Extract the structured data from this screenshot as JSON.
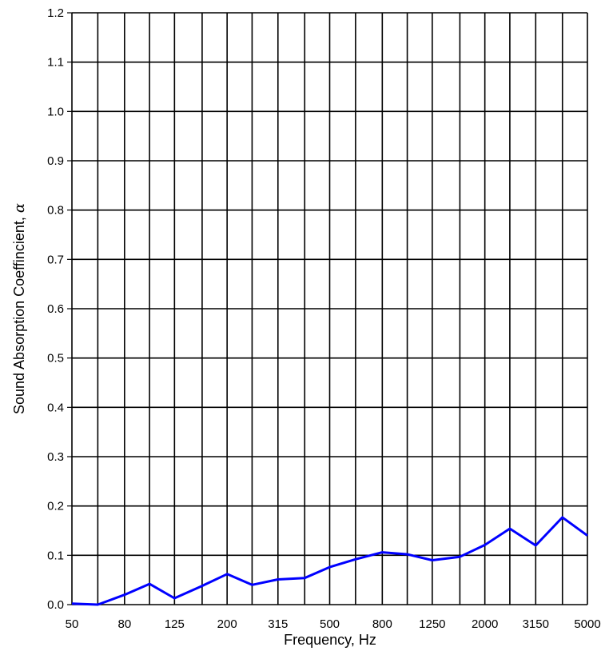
{
  "chart_data": {
    "type": "line",
    "title": "",
    "xlabel": "Frequency, Hz",
    "ylabel": "Sound Absorption Coeffincient, ",
    "ylabel_symbol": "α",
    "x_scale": "log",
    "x_tick_labels": [
      "50",
      "80",
      "125",
      "200",
      "315",
      "500",
      "800",
      "1250",
      "2000",
      "3150",
      "5000"
    ],
    "y_tick_labels": [
      "0.0",
      "0.1",
      "0.2",
      "0.3",
      "0.4",
      "0.5",
      "0.6",
      "0.7",
      "0.8",
      "0.9",
      "1.0",
      "1.1",
      "1.2"
    ],
    "ylim": [
      0,
      1.2
    ],
    "grid": true,
    "series": [
      {
        "color": "#0000ff",
        "points": [
          [
            50,
            0.002
          ],
          [
            63,
            0.0
          ],
          [
            80,
            0.02
          ],
          [
            100,
            0.042
          ],
          [
            125,
            0.013
          ],
          [
            160,
            0.038
          ],
          [
            200,
            0.062
          ],
          [
            250,
            0.04
          ],
          [
            315,
            0.051
          ],
          [
            400,
            0.054
          ],
          [
            500,
            0.076
          ],
          [
            630,
            0.092
          ],
          [
            800,
            0.106
          ],
          [
            1000,
            0.102
          ],
          [
            1250,
            0.09
          ],
          [
            1600,
            0.097
          ],
          [
            2000,
            0.121
          ],
          [
            2500,
            0.154
          ],
          [
            3150,
            0.12
          ],
          [
            4000,
            0.177
          ],
          [
            5000,
            0.14
          ]
        ]
      }
    ]
  }
}
